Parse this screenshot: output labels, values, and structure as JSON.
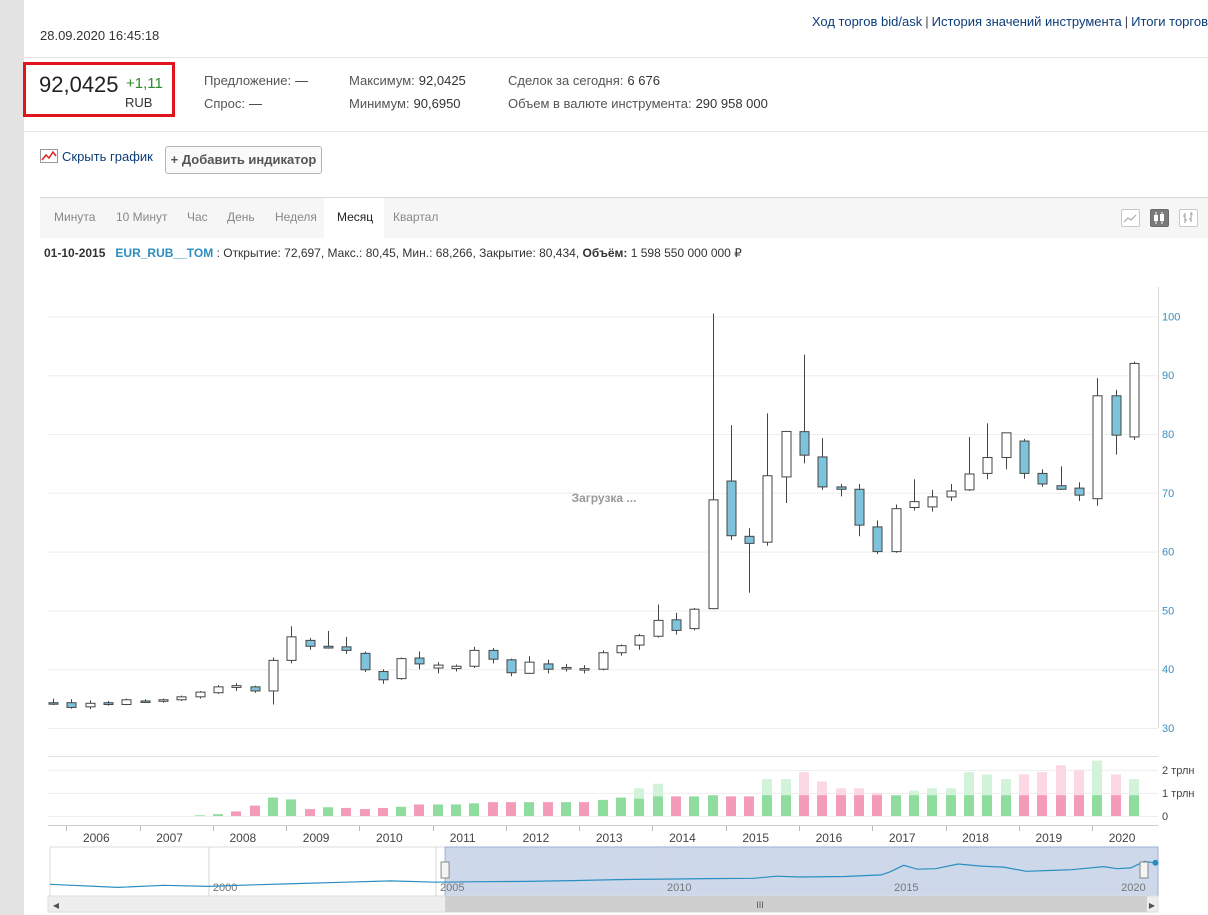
{
  "timestamp": "28.09.2020 16:45:18",
  "top_links": [
    "Ход торгов bid/ask",
    "История значений инструмента",
    "Итоги торгов"
  ],
  "price": {
    "last": "92,0425",
    "change": "+1,11",
    "currency": "RUB"
  },
  "stats": {
    "offer_label": "Предложение:",
    "offer_value": "—",
    "bid_label": "Спрос:",
    "bid_value": "—",
    "max_label": "Максимум:",
    "max_value": "92,0425",
    "min_label": "Минимум:",
    "min_value": "90,6950",
    "deals_label": "Сделок за сегодня:",
    "deals_value": "6 676",
    "volume_label": "Объем в валюте инструмента:",
    "volume_value": "290 958 000"
  },
  "controls": {
    "hide_chart": "Скрыть график",
    "add_indicator": "+ Добавить индикатор"
  },
  "periods": [
    "Минута",
    "10 Минут",
    "Час",
    "День",
    "Неделя",
    "Месяц",
    "Квартал"
  ],
  "active_period": "Месяц",
  "chart_type_icons": [
    "line-chart-icon",
    "candlestick-icon",
    "ohlc-bars-icon"
  ],
  "info_line": {
    "date": "01-10-2015",
    "symbol": "EUR_RUB__TOM",
    "values": ": Открытие: 72,697, Макс.: 80,45, Мин.: 68,266, Закрытие: 80,434,",
    "volume_label": "Объём:",
    "volume_value": "1 598 550 000 000 ₽"
  },
  "loading_text": "Загрузка ...",
  "colors": {
    "up_fill": "#ffffff",
    "down_fill": "#7ec3dc",
    "vol_up": "#8fdc9f",
    "vol_down": "#f49bb8",
    "accent": "#2a8fc0",
    "highlight_box": "#e0141a"
  },
  "chart_data": {
    "type": "candlestick",
    "x_range": [
      2005.75,
      2020.9
    ],
    "y_range": [
      30,
      105
    ],
    "y_ticks": [
      30,
      40,
      50,
      60,
      70,
      80,
      90,
      100
    ],
    "x_tick_labels": [
      "2006",
      "2007",
      "2008",
      "2009",
      "2010",
      "2011",
      "2012",
      "2013",
      "2014",
      "2015",
      "2016",
      "2017",
      "2018",
      "2019",
      "2020"
    ],
    "volume_ticks": [
      "0",
      "1 трлн",
      "2 трлн"
    ],
    "volume_range": [
      0,
      2.6
    ],
    "navigator_labels": [
      "2000",
      "2005",
      "2010",
      "2015",
      "2020"
    ],
    "candles": [
      {
        "t": 2005.82,
        "o": 34.3,
        "h": 35.0,
        "l": 33.9,
        "c": 34.2
      },
      {
        "t": 2006.07,
        "o": 34.3,
        "h": 34.9,
        "l": 33.3,
        "c": 33.5
      },
      {
        "t": 2006.32,
        "o": 33.6,
        "h": 34.7,
        "l": 33.2,
        "c": 34.2
      },
      {
        "t": 2006.57,
        "o": 34.3,
        "h": 34.6,
        "l": 33.8,
        "c": 34.0
      },
      {
        "t": 2006.82,
        "o": 34.0,
        "h": 35.0,
        "l": 33.9,
        "c": 34.8
      },
      {
        "t": 2007.07,
        "o": 34.6,
        "h": 34.9,
        "l": 34.3,
        "c": 34.5
      },
      {
        "t": 2007.32,
        "o": 34.6,
        "h": 35.0,
        "l": 34.3,
        "c": 34.8
      },
      {
        "t": 2007.57,
        "o": 34.8,
        "h": 35.5,
        "l": 34.6,
        "c": 35.3
      },
      {
        "t": 2007.82,
        "o": 35.3,
        "h": 36.3,
        "l": 35.0,
        "c": 36.1
      },
      {
        "t": 2008.07,
        "o": 36.0,
        "h": 37.3,
        "l": 35.8,
        "c": 37.0
      },
      {
        "t": 2008.32,
        "o": 36.9,
        "h": 37.6,
        "l": 36.3,
        "c": 37.2
      },
      {
        "t": 2008.57,
        "o": 37.0,
        "h": 37.2,
        "l": 36.0,
        "c": 36.3
      },
      {
        "t": 2008.82,
        "o": 36.3,
        "h": 42.0,
        "l": 34.0,
        "c": 41.5
      },
      {
        "t": 2009.07,
        "o": 41.5,
        "h": 47.3,
        "l": 41.0,
        "c": 45.5
      },
      {
        "t": 2009.32,
        "o": 44.9,
        "h": 45.3,
        "l": 43.3,
        "c": 43.9
      },
      {
        "t": 2009.57,
        "o": 43.9,
        "h": 46.5,
        "l": 43.5,
        "c": 43.6
      },
      {
        "t": 2009.82,
        "o": 43.8,
        "h": 45.5,
        "l": 42.6,
        "c": 43.2
      },
      {
        "t": 2010.07,
        "o": 42.7,
        "h": 43.0,
        "l": 39.5,
        "c": 39.9
      },
      {
        "t": 2010.32,
        "o": 39.6,
        "h": 40.0,
        "l": 37.5,
        "c": 38.2
      },
      {
        "t": 2010.57,
        "o": 38.4,
        "h": 42.0,
        "l": 38.2,
        "c": 41.8
      },
      {
        "t": 2010.82,
        "o": 41.9,
        "h": 43.0,
        "l": 40.0,
        "c": 40.9
      },
      {
        "t": 2011.07,
        "o": 40.2,
        "h": 41.2,
        "l": 39.3,
        "c": 40.7
      },
      {
        "t": 2011.32,
        "o": 40.1,
        "h": 40.8,
        "l": 39.6,
        "c": 40.5
      },
      {
        "t": 2011.57,
        "o": 40.5,
        "h": 43.8,
        "l": 40.2,
        "c": 43.2
      },
      {
        "t": 2011.82,
        "o": 43.2,
        "h": 43.6,
        "l": 41.0,
        "c": 41.7
      },
      {
        "t": 2012.07,
        "o": 41.6,
        "h": 41.8,
        "l": 38.8,
        "c": 39.4
      },
      {
        "t": 2012.32,
        "o": 39.3,
        "h": 42.2,
        "l": 39.2,
        "c": 41.2
      },
      {
        "t": 2012.57,
        "o": 40.9,
        "h": 41.6,
        "l": 39.3,
        "c": 40.0
      },
      {
        "t": 2012.82,
        "o": 40.2,
        "h": 40.9,
        "l": 39.6,
        "c": 40.3
      },
      {
        "t": 2013.07,
        "o": 40.0,
        "h": 40.7,
        "l": 39.3,
        "c": 40.1
      },
      {
        "t": 2013.32,
        "o": 40.0,
        "h": 43.2,
        "l": 39.8,
        "c": 42.8
      },
      {
        "t": 2013.57,
        "o": 42.8,
        "h": 44.2,
        "l": 42.3,
        "c": 44.0
      },
      {
        "t": 2013.82,
        "o": 44.1,
        "h": 46.0,
        "l": 43.3,
        "c": 45.7
      },
      {
        "t": 2014.07,
        "o": 45.6,
        "h": 51.0,
        "l": 45.4,
        "c": 48.3
      },
      {
        "t": 2014.32,
        "o": 48.4,
        "h": 49.6,
        "l": 45.9,
        "c": 46.6
      },
      {
        "t": 2014.57,
        "o": 46.9,
        "h": 50.4,
        "l": 46.6,
        "c": 50.2
      },
      {
        "t": 2014.82,
        "o": 50.3,
        "h": 100.5,
        "l": 50.2,
        "c": 68.8
      },
      {
        "t": 2015.07,
        "o": 72.0,
        "h": 81.5,
        "l": 62.0,
        "c": 62.7
      },
      {
        "t": 2015.32,
        "o": 62.6,
        "h": 64.0,
        "l": 53.0,
        "c": 61.4
      },
      {
        "t": 2015.57,
        "o": 61.6,
        "h": 83.5,
        "l": 61.0,
        "c": 72.9
      },
      {
        "t": 2015.82,
        "o": 72.7,
        "h": 80.45,
        "l": 68.266,
        "c": 80.434
      },
      {
        "t": 2016.07,
        "o": 80.4,
        "h": 93.5,
        "l": 75.0,
        "c": 76.4
      },
      {
        "t": 2016.32,
        "o": 76.1,
        "h": 79.3,
        "l": 70.5,
        "c": 71.0
      },
      {
        "t": 2016.57,
        "o": 71.0,
        "h": 71.5,
        "l": 69.4,
        "c": 70.6
      },
      {
        "t": 2016.82,
        "o": 70.6,
        "h": 71.5,
        "l": 62.6,
        "c": 64.5
      },
      {
        "t": 2017.07,
        "o": 64.2,
        "h": 65.3,
        "l": 59.6,
        "c": 60.0
      },
      {
        "t": 2017.32,
        "o": 60.0,
        "h": 68.0,
        "l": 59.8,
        "c": 67.3
      },
      {
        "t": 2017.57,
        "o": 67.5,
        "h": 72.3,
        "l": 67.0,
        "c": 68.5
      },
      {
        "t": 2017.82,
        "o": 67.6,
        "h": 70.5,
        "l": 66.8,
        "c": 69.3
      },
      {
        "t": 2018.07,
        "o": 69.3,
        "h": 71.5,
        "l": 68.6,
        "c": 70.3
      },
      {
        "t": 2018.32,
        "o": 70.5,
        "h": 79.5,
        "l": 70.3,
        "c": 73.2
      },
      {
        "t": 2018.57,
        "o": 73.3,
        "h": 81.8,
        "l": 72.3,
        "c": 76.0
      },
      {
        "t": 2018.82,
        "o": 76.0,
        "h": 80.2,
        "l": 74.0,
        "c": 80.2
      },
      {
        "t": 2019.07,
        "o": 78.8,
        "h": 79.2,
        "l": 72.4,
        "c": 73.3
      },
      {
        "t": 2019.32,
        "o": 73.3,
        "h": 74.0,
        "l": 71.0,
        "c": 71.5
      },
      {
        "t": 2019.57,
        "o": 71.2,
        "h": 74.5,
        "l": 70.5,
        "c": 70.6
      },
      {
        "t": 2019.82,
        "o": 70.8,
        "h": 71.8,
        "l": 68.6,
        "c": 69.6
      },
      {
        "t": 2020.07,
        "o": 69.0,
        "h": 89.5,
        "l": 67.8,
        "c": 86.5
      },
      {
        "t": 2020.32,
        "o": 86.5,
        "h": 87.5,
        "l": 76.5,
        "c": 79.8
      },
      {
        "t": 2020.57,
        "o": 79.5,
        "h": 92.3,
        "l": 79.0,
        "c": 92.0
      }
    ],
    "volume_bars": [
      {
        "t": 2006.07,
        "v": 0.0,
        "up": true
      },
      {
        "t": 2007.82,
        "v": 0.03,
        "up": true
      },
      {
        "t": 2008.07,
        "v": 0.08,
        "up": true
      },
      {
        "t": 2008.32,
        "v": 0.2,
        "up": false
      },
      {
        "t": 2008.57,
        "v": 0.45,
        "up": false
      },
      {
        "t": 2008.82,
        "v": 0.8,
        "up": true
      },
      {
        "t": 2009.07,
        "v": 0.72,
        "up": true
      },
      {
        "t": 2009.32,
        "v": 0.3,
        "up": false
      },
      {
        "t": 2009.57,
        "v": 0.38,
        "up": true
      },
      {
        "t": 2009.82,
        "v": 0.35,
        "up": false
      },
      {
        "t": 2010.07,
        "v": 0.3,
        "up": false
      },
      {
        "t": 2010.32,
        "v": 0.35,
        "up": false
      },
      {
        "t": 2010.57,
        "v": 0.4,
        "up": true
      },
      {
        "t": 2010.82,
        "v": 0.5,
        "up": false
      },
      {
        "t": 2011.07,
        "v": 0.5,
        "up": true
      },
      {
        "t": 2011.32,
        "v": 0.5,
        "up": true
      },
      {
        "t": 2011.57,
        "v": 0.55,
        "up": true
      },
      {
        "t": 2011.82,
        "v": 0.6,
        "up": false
      },
      {
        "t": 2012.07,
        "v": 0.6,
        "up": false
      },
      {
        "t": 2012.32,
        "v": 0.6,
        "up": true
      },
      {
        "t": 2012.57,
        "v": 0.6,
        "up": false
      },
      {
        "t": 2012.82,
        "v": 0.6,
        "up": true
      },
      {
        "t": 2013.07,
        "v": 0.6,
        "up": false
      },
      {
        "t": 2013.32,
        "v": 0.7,
        "up": true
      },
      {
        "t": 2013.57,
        "v": 0.8,
        "up": true
      },
      {
        "t": 2013.82,
        "v": 0.75,
        "up": true
      },
      {
        "t": 2014.07,
        "v": 0.85,
        "up": true
      },
      {
        "t": 2014.32,
        "v": 0.85,
        "up": false
      },
      {
        "t": 2014.57,
        "v": 0.85,
        "up": true
      },
      {
        "t": 2014.82,
        "v": 0.9,
        "up": true
      },
      {
        "t": 2015.07,
        "v": 0.85,
        "up": false
      },
      {
        "t": 2015.32,
        "v": 0.85,
        "up": false
      },
      {
        "t": 2015.57,
        "v": 0.9,
        "up": true
      },
      {
        "t": 2015.82,
        "v": 0.9,
        "up": true
      },
      {
        "t": 2016.07,
        "v": 0.9,
        "up": false
      },
      {
        "t": 2016.32,
        "v": 0.9,
        "up": false
      },
      {
        "t": 2016.57,
        "v": 0.9,
        "up": false
      },
      {
        "t": 2016.82,
        "v": 0.9,
        "up": false
      },
      {
        "t": 2017.07,
        "v": 0.9,
        "up": false
      },
      {
        "t": 2017.32,
        "v": 0.9,
        "up": true
      },
      {
        "t": 2017.57,
        "v": 0.9,
        "up": true
      },
      {
        "t": 2017.82,
        "v": 0.9,
        "up": true
      },
      {
        "t": 2018.07,
        "v": 0.9,
        "up": true
      },
      {
        "t": 2018.32,
        "v": 0.9,
        "up": true
      },
      {
        "t": 2018.57,
        "v": 0.9,
        "up": true
      },
      {
        "t": 2018.82,
        "v": 0.9,
        "up": true
      },
      {
        "t": 2019.07,
        "v": 0.9,
        "up": false
      },
      {
        "t": 2019.32,
        "v": 0.9,
        "up": false
      },
      {
        "t": 2019.57,
        "v": 0.9,
        "up": false
      },
      {
        "t": 2019.82,
        "v": 0.9,
        "up": false
      },
      {
        "t": 2020.07,
        "v": 0.9,
        "up": true
      },
      {
        "t": 2020.32,
        "v": 0.9,
        "up": false
      },
      {
        "t": 2020.57,
        "v": 0.9,
        "up": true
      }
    ],
    "faint_volume_bars": [
      {
        "t": 2013.82,
        "v": 1.2,
        "up": true
      },
      {
        "t": 2014.07,
        "v": 1.4,
        "up": true
      },
      {
        "t": 2015.57,
        "v": 1.6,
        "up": true
      },
      {
        "t": 2015.82,
        "v": 1.6,
        "up": true
      },
      {
        "t": 2016.07,
        "v": 1.9,
        "up": false
      },
      {
        "t": 2016.32,
        "v": 1.5,
        "up": false
      },
      {
        "t": 2016.57,
        "v": 1.2,
        "up": false
      },
      {
        "t": 2016.82,
        "v": 1.2,
        "up": false
      },
      {
        "t": 2017.07,
        "v": 1.0,
        "up": false
      },
      {
        "t": 2017.57,
        "v": 1.1,
        "up": true
      },
      {
        "t": 2017.82,
        "v": 1.2,
        "up": true
      },
      {
        "t": 2018.07,
        "v": 1.2,
        "up": true
      },
      {
        "t": 2018.32,
        "v": 1.9,
        "up": true
      },
      {
        "t": 2018.57,
        "v": 1.8,
        "up": true
      },
      {
        "t": 2018.82,
        "v": 1.6,
        "up": true
      },
      {
        "t": 2019.07,
        "v": 1.8,
        "up": false
      },
      {
        "t": 2019.32,
        "v": 1.9,
        "up": false
      },
      {
        "t": 2019.57,
        "v": 2.2,
        "up": false
      },
      {
        "t": 2019.82,
        "v": 2.0,
        "up": false
      },
      {
        "t": 2020.07,
        "v": 2.4,
        "up": true
      },
      {
        "t": 2020.32,
        "v": 1.8,
        "up": false
      },
      {
        "t": 2020.57,
        "v": 1.6,
        "up": true
      }
    ],
    "navigator_line": [
      {
        "t": 1996.5,
        "y": 0.22
      },
      {
        "t": 1998.0,
        "y": 0.1
      },
      {
        "t": 1999.0,
        "y": 0.18
      },
      {
        "t": 2000.0,
        "y": 0.14
      },
      {
        "t": 2001.0,
        "y": 0.2
      },
      {
        "t": 2002.0,
        "y": 0.25
      },
      {
        "t": 2003.0,
        "y": 0.3
      },
      {
        "t": 2004.0,
        "y": 0.35
      },
      {
        "t": 2005.0,
        "y": 0.3
      },
      {
        "t": 2006.0,
        "y": 0.32
      },
      {
        "t": 2007.0,
        "y": 0.33
      },
      {
        "t": 2008.0,
        "y": 0.36
      },
      {
        "t": 2009.0,
        "y": 0.4
      },
      {
        "t": 2010.0,
        "y": 0.42
      },
      {
        "t": 2011.0,
        "y": 0.44
      },
      {
        "t": 2012.0,
        "y": 0.45
      },
      {
        "t": 2012.5,
        "y": 0.53
      },
      {
        "t": 2013.0,
        "y": 0.5
      },
      {
        "t": 2014.0,
        "y": 0.52
      },
      {
        "t": 2014.8,
        "y": 0.58
      },
      {
        "t": 2015.0,
        "y": 0.7
      },
      {
        "t": 2015.3,
        "y": 0.95
      },
      {
        "t": 2015.6,
        "y": 0.8
      },
      {
        "t": 2016.0,
        "y": 0.82
      },
      {
        "t": 2016.5,
        "y": 1.0
      },
      {
        "t": 2017.0,
        "y": 0.92
      },
      {
        "t": 2017.5,
        "y": 0.88
      },
      {
        "t": 2018.0,
        "y": 0.72
      },
      {
        "t": 2018.5,
        "y": 0.75
      },
      {
        "t": 2019.0,
        "y": 0.78
      },
      {
        "t": 2019.7,
        "y": 0.9
      },
      {
        "t": 2020.0,
        "y": 0.82
      },
      {
        "t": 2020.3,
        "y": 0.85
      },
      {
        "t": 2020.6,
        "y": 1.1
      },
      {
        "t": 2020.8,
        "y": 1.05
      }
    ]
  }
}
